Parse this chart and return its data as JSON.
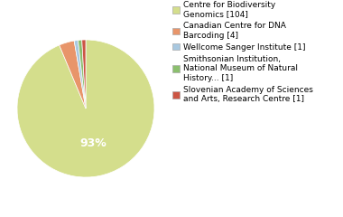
{
  "labels": [
    "Centre for Biodiversity\nGenomics [104]",
    "Canadian Centre for DNA\nBarcoding [4]",
    "Wellcome Sanger Institute [1]",
    "Smithsonian Institution,\nNational Museum of Natural\nHistory... [1]",
    "Slovenian Academy of Sciences\nand Arts, Research Centre [1]"
  ],
  "values": [
    104,
    4,
    1,
    1,
    1
  ],
  "colors": [
    "#d4de8c",
    "#e8956a",
    "#a8c8e0",
    "#8bbf6e",
    "#cc5544"
  ],
  "background_color": "#ffffff",
  "text_color": "#ffffff",
  "pct_text": "93%",
  "pct_fontsize": 9,
  "legend_fontsize": 6.5
}
